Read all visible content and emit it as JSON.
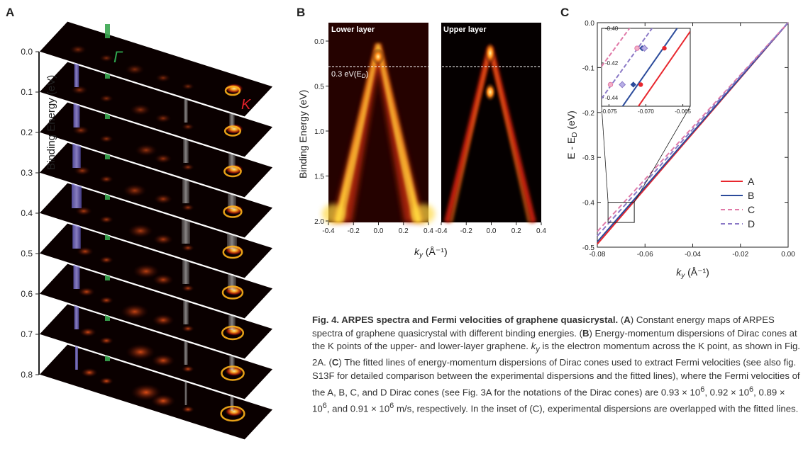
{
  "panels": {
    "a_letter": "A",
    "b_letter": "B",
    "c_letter": "C"
  },
  "panel_a": {
    "y_axis_label": "Binding Energy (eV)",
    "energy_ticks": [
      "0.0",
      "0.1",
      "0.2",
      "0.3",
      "0.4",
      "0.5",
      "0.6",
      "0.7",
      "0.8"
    ],
    "gamma_label": "Γ",
    "k_label": "K",
    "gamma_color": "#2fa84f",
    "k_color": "#e0202a"
  },
  "panel_b": {
    "left_title": "Lower layer",
    "right_title": "Upper layer",
    "y_axis_label": "Binding Energy (eV)",
    "x_axis_label": "k",
    "x_axis_sub": "y",
    "x_axis_unit": " (Å⁻¹)",
    "y_ticks": [
      "0.0",
      "0.5",
      "1.0",
      "1.5",
      "2.0"
    ],
    "x_ticks": [
      "-0.4",
      "-0.2",
      "0.0",
      "0.2",
      "0.4"
    ],
    "dirac_annotation": "0.3 eV(E",
    "dirac_annotation_sub": "D",
    "dirac_annotation_end": ")"
  },
  "chart_data": {
    "type": "line",
    "xlabel": "ky (Å⁻¹)",
    "ylabel": "E - ED (eV)",
    "xlim": [
      -0.08,
      0.0
    ],
    "ylim": [
      -0.5,
      0.0
    ],
    "x_ticks": [
      "-0.08",
      "-0.06",
      "-0.04",
      "-0.02",
      "0.00"
    ],
    "y_ticks": [
      "0.0",
      "-0.1",
      "-0.2",
      "-0.3",
      "-0.4",
      "-0.5"
    ],
    "legend_position": "bottom-right",
    "series": [
      {
        "name": "A",
        "color": "#e8262d",
        "dash": "solid",
        "x": [
          -0.08,
          0.0
        ],
        "y": [
          -0.493,
          0.0
        ]
      },
      {
        "name": "B",
        "color": "#2b4b9b",
        "dash": "solid",
        "x": [
          -0.08,
          0.0
        ],
        "y": [
          -0.488,
          0.0
        ]
      },
      {
        "name": "C",
        "color": "#e07aa8",
        "dash": "dashed",
        "x": [
          -0.08,
          0.0
        ],
        "y": [
          -0.465,
          0.0
        ]
      },
      {
        "name": "D",
        "color": "#8a78c6",
        "dash": "dashed",
        "x": [
          -0.08,
          0.0
        ],
        "y": [
          -0.475,
          0.0
        ]
      }
    ],
    "inset": {
      "xlim": [
        -0.076,
        -0.064
      ],
      "ylim": [
        -0.445,
        -0.4
      ],
      "x_ticks": [
        "-0.075",
        "-0.070",
        "-0.065"
      ],
      "y_ticks": [
        "-0.40",
        "-0.42",
        "-0.44"
      ],
      "points": [
        {
          "series": "A",
          "x": [
            -0.0707,
            -0.0675
          ],
          "y": [
            -0.4325,
            -0.4115
          ]
        },
        {
          "series": "B",
          "x": [
            -0.0717,
            -0.0705
          ],
          "y": [
            -0.4325,
            -0.4115
          ]
        },
        {
          "series": "C",
          "x": [
            -0.0748,
            -0.0712
          ],
          "y": [
            -0.4325,
            -0.4115
          ]
        },
        {
          "series": "D",
          "x": [
            -0.0732,
            -0.0702
          ],
          "y": [
            -0.4325,
            -0.4115
          ]
        }
      ]
    }
  },
  "caption": {
    "title": "Fig. 4. ARPES spectra and Fermi velocities of graphene quasicrystal.",
    "a_open": " (",
    "a_letter": "A",
    "a_text": ") Constant energy maps of ARPES spectra of graphene quasicrystal with different binding energies.",
    "b_open": " (",
    "b_letter": "B",
    "b_text": ") Energy-momentum dispersions of Dirac cones at the K points of the upper- and lower-layer graphene.",
    "ky_k": "k",
    "ky_sub": "y",
    "ky_text": " is the electron momentum across the K point, as shown in Fig. 2A.",
    "c_open": " (",
    "c_letter": "C",
    "c_text": ") The fitted lines of energy-momentum dispersions of Dirac cones used to extract Fermi velocities (see also fig. S13F for detailed comparison between the experimental dispersions and the fitted lines), where the Fermi velocities of the A, B, C, and D Dirac cones (see Fig. 3A for the notations of the Dirac cones) are 0.93 × 10",
    "exp1": "6",
    "sep1": ", 0.92 × 10",
    "exp2": "6",
    "sep2": ", 0.89 × 10",
    "exp3": "6",
    "sep3": ", and 0.91 × 10",
    "exp4": "6",
    "tail": " m/s, respectively. In the inset of (C), experimental dispersions are overlapped with the fitted lines."
  }
}
